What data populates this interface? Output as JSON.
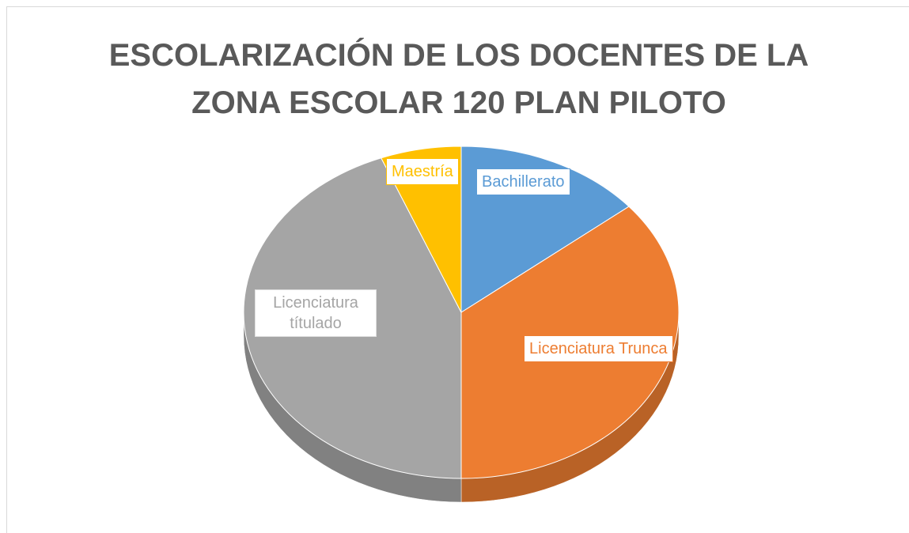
{
  "chart_data": {
    "type": "pie3d",
    "title": "ESCOLARIZACIÓN DE LOS DOCENTES DE LA ZONA ESCOLAR 120 PLAN PILOTO",
    "categories": [
      "Bachillerato",
      "Licenciatura Trunca",
      "Licenciatura títulado",
      "Maestría"
    ],
    "values": [
      14,
      36,
      44,
      6
    ],
    "colors": [
      "#5b9bd5",
      "#ed7d31",
      "#a5a5a5",
      "#ffc000"
    ]
  }
}
